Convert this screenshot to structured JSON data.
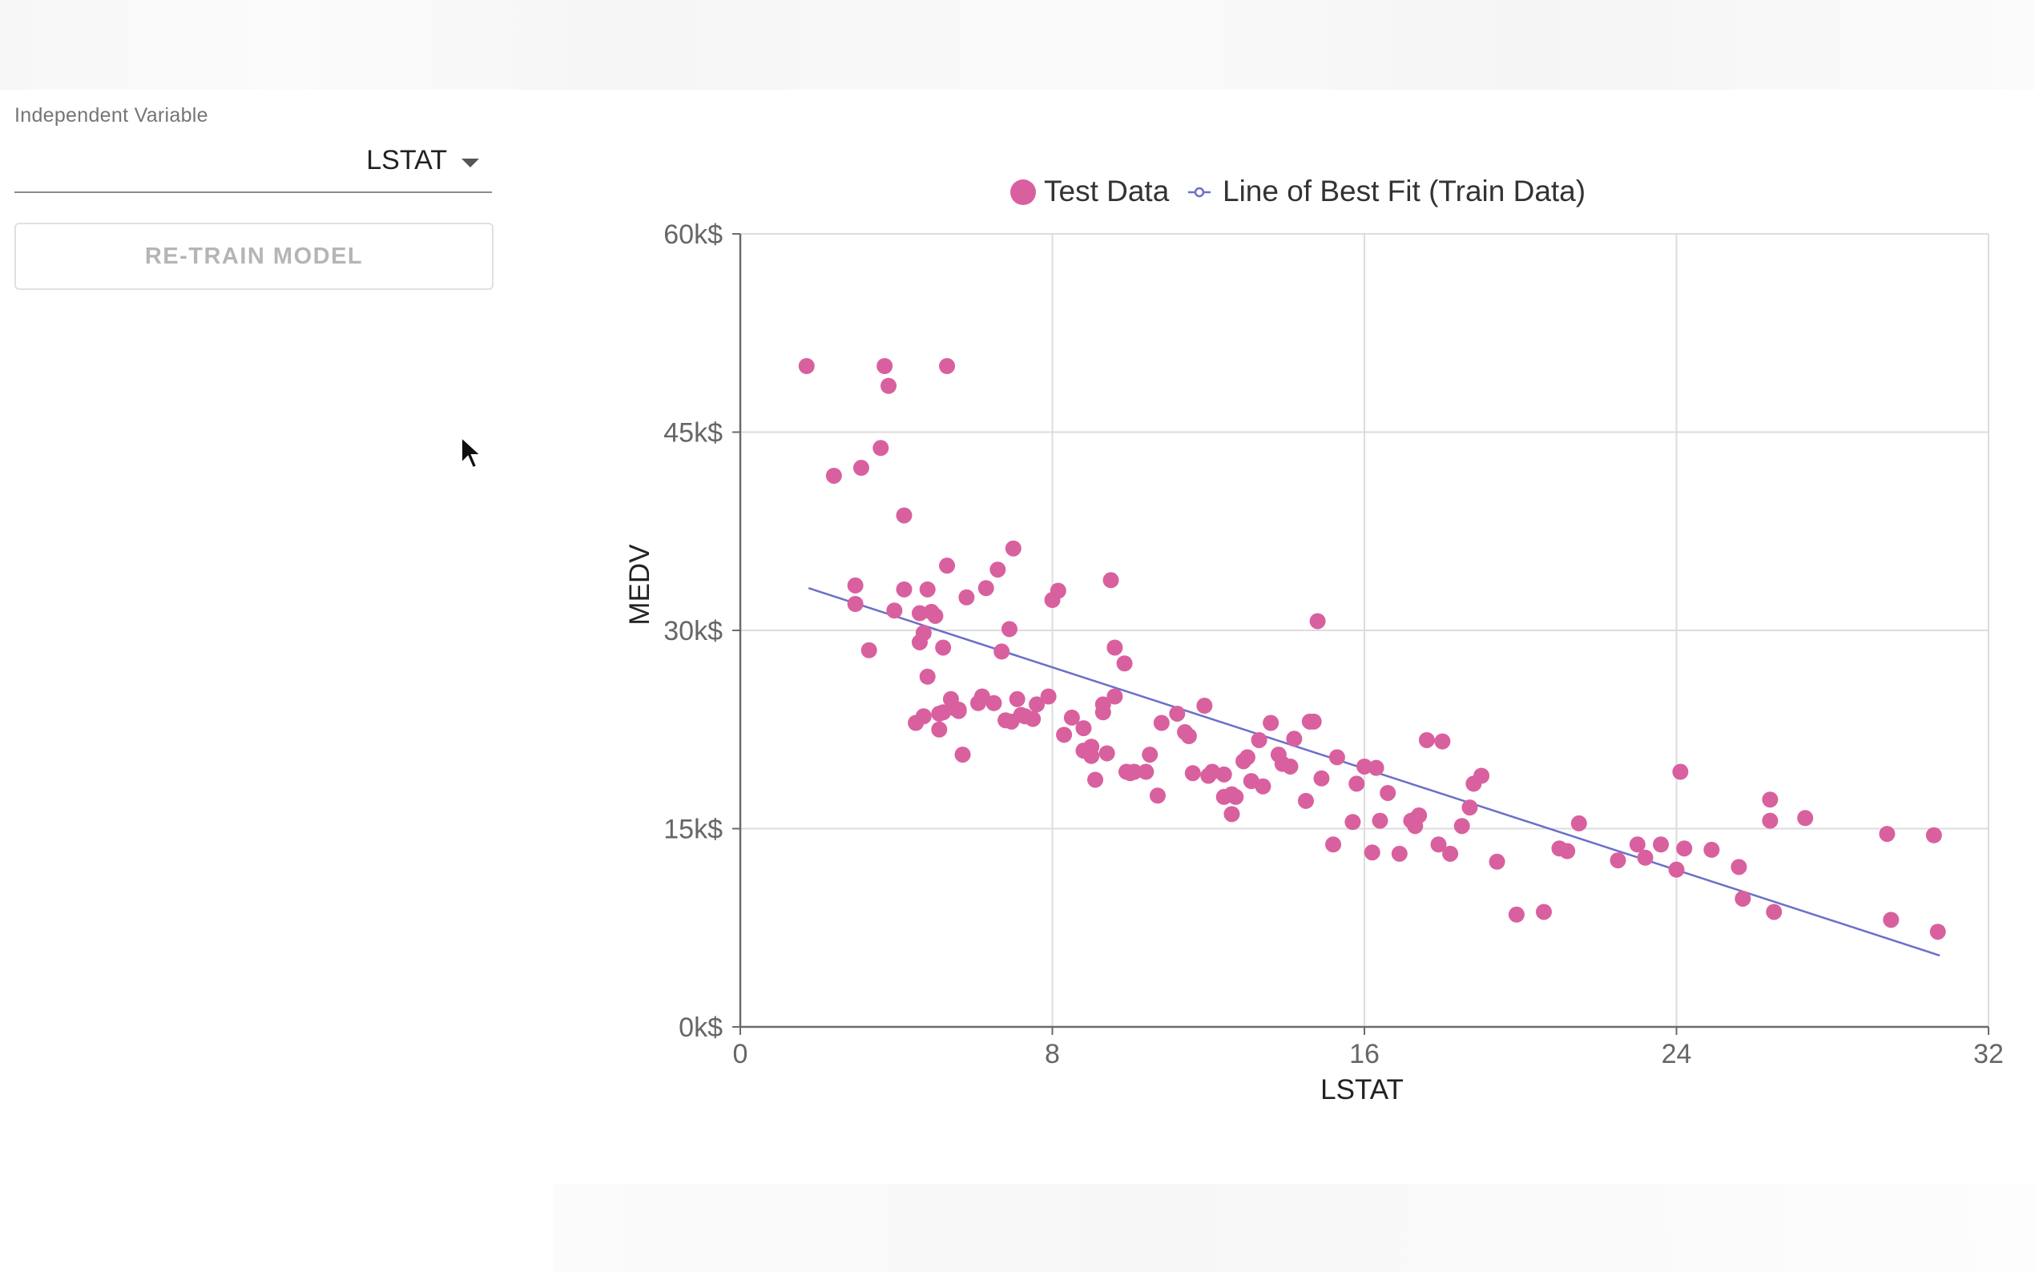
{
  "colors": {
    "points": "#d9609f",
    "line": "#6a6fc9",
    "grid": "#dcdcdc",
    "axis": "#6b6b6b"
  },
  "controls": {
    "independent_label": "Independent Variable",
    "independent_value": "LSTAT",
    "retrain_label": "RE-TRAIN MODEL",
    "caret_icon": "caret-down-icon",
    "cursor_icon": "mouse-pointer-icon"
  },
  "chart_data": {
    "type": "scatter",
    "xlabel": "LSTAT",
    "ylabel": "MEDV",
    "xlim": [
      0,
      32
    ],
    "ylim": [
      0,
      60
    ],
    "x_ticks": [
      0,
      8,
      16,
      24,
      32
    ],
    "y_ticks": [
      0,
      15,
      30,
      45,
      60
    ],
    "y_tick_labels": [
      "0k$",
      "15k$",
      "30k$",
      "45k$",
      "60k$"
    ],
    "grid": true,
    "legend": {
      "position": "top-center",
      "entries": [
        "Test Data",
        "Line of Best Fit (Train Data)"
      ]
    },
    "series": [
      {
        "name": "Test Data",
        "kind": "scatter",
        "x": [
          1.7,
          3.7,
          3.8,
          5.3,
          2.4,
          3.1,
          3.6,
          4.2,
          2.95,
          2.95,
          3.3,
          4.2,
          3.95,
          4.6,
          4.8,
          5.0,
          5.2,
          4.5,
          4.7,
          5.1,
          5.4,
          5.3,
          5.8,
          6.3,
          6.6,
          6.9,
          7.0,
          8.0,
          8.15,
          9.5,
          9.6,
          9.85,
          14.8,
          4.8,
          5.1,
          5.2,
          5.5,
          5.7,
          4.7,
          4.6,
          4.9,
          5.6,
          6.2,
          6.5,
          6.7,
          6.95,
          7.1,
          7.3,
          7.6,
          7.9,
          8.3,
          8.5,
          8.8,
          9.0,
          9.3,
          9.6,
          10.1,
          10.5,
          11.2,
          11.5,
          11.9,
          12.4,
          12.9,
          13.3,
          13.6,
          14.2,
          14.7,
          15.3,
          16.0,
          16.4,
          17.2,
          17.9,
          18.7,
          9.0,
          9.4,
          9.9,
          10.4,
          10.8,
          12.1,
          12.7,
          13.1,
          13.8,
          14.5,
          16.2,
          16.9,
          17.6,
          18.5,
          19.0,
          12.6,
          12.4,
          13.4,
          13.9,
          14.6,
          15.2,
          15.8,
          16.3,
          17.3,
          18.2,
          19.4,
          21.2,
          21.5,
          23.2,
          23.6,
          24.0,
          24.1,
          24.9,
          25.6,
          26.4,
          26.4,
          27.3,
          29.4,
          30.6,
          25.7,
          26.5,
          29.5,
          30.7,
          17.4,
          19.9,
          20.6,
          5.6,
          6.1,
          6.8,
          7.2,
          7.5,
          8.8,
          9.1,
          9.3,
          10.0,
          10.7,
          11.6,
          12.6,
          13.0,
          14.1,
          14.9,
          15.7,
          16.6,
          17.3,
          18.0,
          18.8,
          21.0,
          22.5,
          23.0,
          24.2,
          11.4,
          12.0
        ],
        "y": [
          50.0,
          50.0,
          48.5,
          50.0,
          41.7,
          42.3,
          43.8,
          38.7,
          33.4,
          32.0,
          28.5,
          33.1,
          31.5,
          31.3,
          33.1,
          31.1,
          28.7,
          23.0,
          23.5,
          23.7,
          24.8,
          34.9,
          32.5,
          33.2,
          34.6,
          30.1,
          36.2,
          32.3,
          33.0,
          33.8,
          28.7,
          27.5,
          30.7,
          26.5,
          22.5,
          23.8,
          24.1,
          20.6,
          29.8,
          29.1,
          31.4,
          24.0,
          25.0,
          24.5,
          28.4,
          23.1,
          24.8,
          23.5,
          24.4,
          25.0,
          22.1,
          23.4,
          22.6,
          21.2,
          23.8,
          25.0,
          19.3,
          20.6,
          23.7,
          22.0,
          24.3,
          19.1,
          20.1,
          21.7,
          23.0,
          21.8,
          23.1,
          20.4,
          19.7,
          15.6,
          15.6,
          13.8,
          16.6,
          20.5,
          20.7,
          19.3,
          19.3,
          23.0,
          19.3,
          17.4,
          18.6,
          20.6,
          17.1,
          13.2,
          13.1,
          21.7,
          15.2,
          19.0,
          16.1,
          17.4,
          18.2,
          19.9,
          23.1,
          13.8,
          18.4,
          19.6,
          15.7,
          13.1,
          12.5,
          13.3,
          15.4,
          12.8,
          13.8,
          11.9,
          19.3,
          13.4,
          12.1,
          17.2,
          15.6,
          15.8,
          14.6,
          14.5,
          9.7,
          8.7,
          8.1,
          7.2,
          16.0,
          8.5,
          8.7,
          23.9,
          24.5,
          23.2,
          23.6,
          23.3,
          20.9,
          18.7,
          24.4,
          19.2,
          17.5,
          19.2,
          17.6,
          20.4,
          19.7,
          18.8,
          15.5,
          17.7,
          15.2,
          21.6,
          18.4,
          13.5,
          12.6,
          13.8,
          13.5,
          22.3,
          19.0
        ]
      },
      {
        "name": "Line of Best Fit (Train Data)",
        "kind": "line",
        "x": [
          1.75,
          30.75
        ],
        "y": [
          33.2,
          5.4
        ]
      }
    ]
  }
}
